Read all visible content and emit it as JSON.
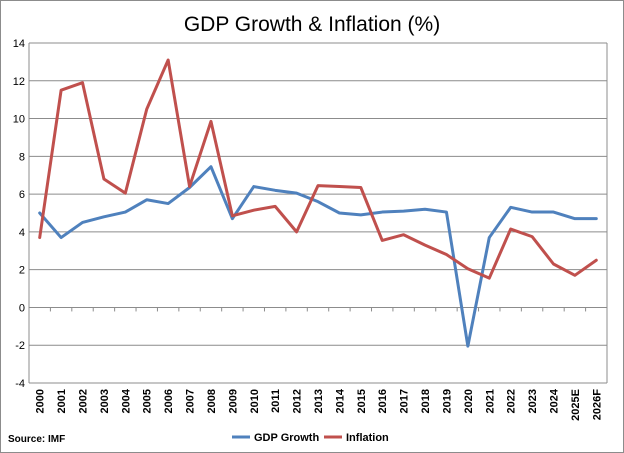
{
  "chart_data": {
    "type": "line",
    "title": "GDP Growth & Inflation (%)",
    "xlabel": "",
    "ylabel": "",
    "categories": [
      "2000",
      "2001",
      "2002",
      "2003",
      "2004",
      "2005",
      "2006",
      "2007",
      "2008",
      "2009",
      "2010",
      "2011",
      "2012",
      "2013",
      "2014",
      "2015",
      "2016",
      "2017",
      "2018",
      "2019",
      "2020",
      "2021",
      "2022",
      "2023",
      "2024",
      "2025E",
      "2026F"
    ],
    "ylim": [
      -4,
      14
    ],
    "yticks": [
      -4,
      -2,
      0,
      2,
      4,
      6,
      8,
      10,
      12,
      14
    ],
    "grid": true,
    "legend_position": "bottom",
    "series": [
      {
        "name": "GDP Growth",
        "color": "#4f81bd",
        "values": [
          5.0,
          3.7,
          4.5,
          4.8,
          5.05,
          5.7,
          5.5,
          6.35,
          7.45,
          4.7,
          6.4,
          6.2,
          6.05,
          5.6,
          5.0,
          4.9,
          5.05,
          5.1,
          5.2,
          5.05,
          -2.05,
          3.7,
          5.3,
          5.05,
          5.05,
          4.7,
          4.7
        ]
      },
      {
        "name": "Inflation",
        "color": "#c0504d",
        "values": [
          3.7,
          11.5,
          11.9,
          6.8,
          6.05,
          10.5,
          13.1,
          6.4,
          9.85,
          4.85,
          5.15,
          5.35,
          4.0,
          6.45,
          6.4,
          6.35,
          3.55,
          3.85,
          3.3,
          2.8,
          2.05,
          1.55,
          4.15,
          3.75,
          2.3,
          1.7,
          2.5
        ]
      }
    ],
    "source": "Source: IMF"
  }
}
